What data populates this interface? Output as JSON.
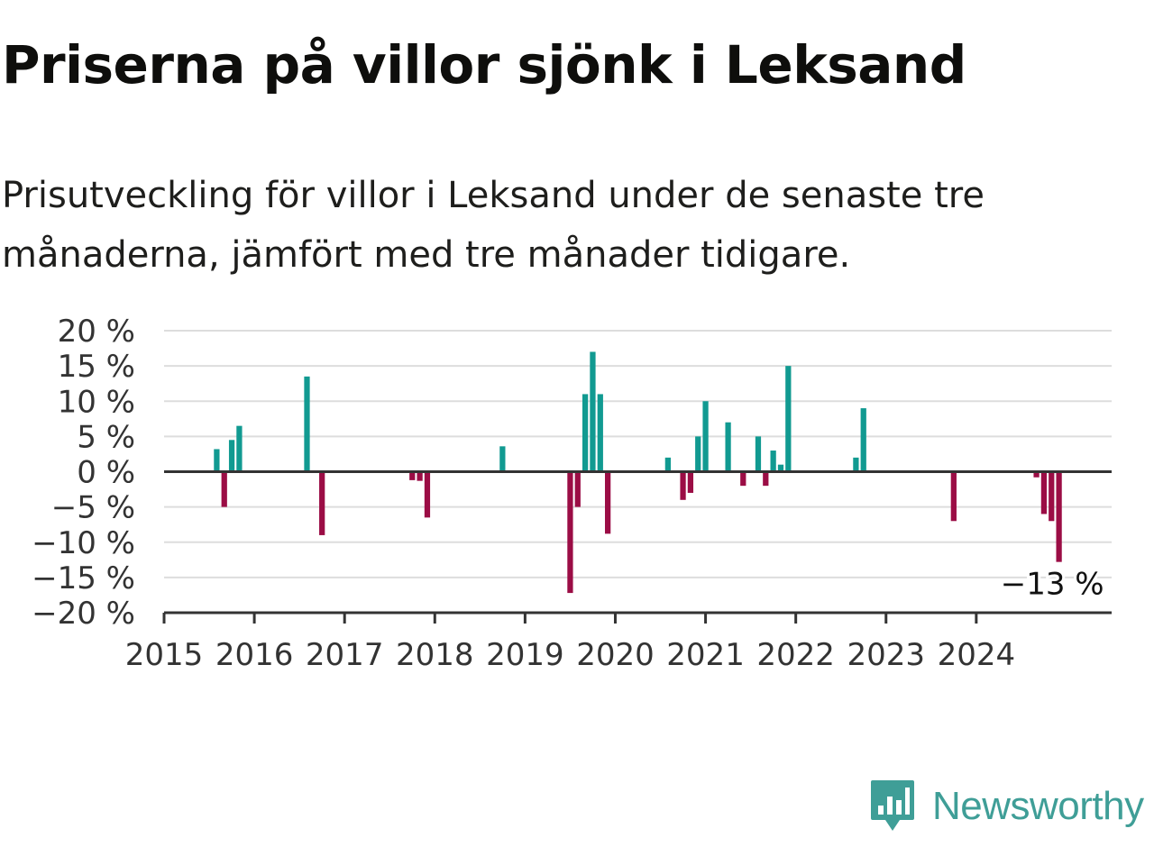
{
  "title": "Priserna på villor sjönk i Leksand",
  "subtitle": "Prisutveckling för villor i Leksand under de senaste tre månaderna, jämfört med tre månader tidigare.",
  "brand": {
    "name": "Newsworthy",
    "color": "#3f9e97",
    "icon": "chart-bubble-icon"
  },
  "chart_data": {
    "type": "bar",
    "title": "",
    "xlabel": "",
    "ylabel": "",
    "ylim": [
      -20,
      20
    ],
    "xlim": [
      2015,
      2025.5
    ],
    "grid": true,
    "legend": "none",
    "colors": {
      "positive": "#119a91",
      "negative": "#9b0d45",
      "grid": "#dddddd",
      "axis": "#333333"
    },
    "yticks": [
      {
        "value": 20,
        "label": "20 %"
      },
      {
        "value": 15,
        "label": "15 %"
      },
      {
        "value": 10,
        "label": "10 %"
      },
      {
        "value": 5,
        "label": "5 %"
      },
      {
        "value": 0,
        "label": "0 %"
      },
      {
        "value": -5,
        "label": "−5 %"
      },
      {
        "value": -10,
        "label": "−10 %"
      },
      {
        "value": -15,
        "label": "−15 %"
      },
      {
        "value": -20,
        "label": "−20 %"
      }
    ],
    "xticks": [
      {
        "value": 2015,
        "label": "2015"
      },
      {
        "value": 2016,
        "label": "2016"
      },
      {
        "value": 2017,
        "label": "2017"
      },
      {
        "value": 2018,
        "label": "2018"
      },
      {
        "value": 2019,
        "label": "2019"
      },
      {
        "value": 2020,
        "label": "2020"
      },
      {
        "value": 2021,
        "label": "2021"
      },
      {
        "value": 2022,
        "label": "2022"
      },
      {
        "value": 2023,
        "label": "2023"
      },
      {
        "value": 2024,
        "label": "2024"
      }
    ],
    "x": [
      "2015-08",
      "2015-09",
      "2015-10",
      "2015-11",
      "2016-08",
      "2016-10",
      "2017-10",
      "2017-11",
      "2017-12",
      "2018-10",
      "2019-07",
      "2019-08",
      "2019-09",
      "2019-10",
      "2019-11",
      "2019-12",
      "2020-08",
      "2020-10",
      "2020-11",
      "2020-12",
      "2021-01",
      "2021-04",
      "2021-06",
      "2021-08",
      "2021-09",
      "2021-10",
      "2021-11",
      "2021-12",
      "2022-09",
      "2022-10",
      "2023-10",
      "2024-09",
      "2024-10",
      "2024-11",
      "2024-12"
    ],
    "values": [
      3.2,
      -5,
      4.5,
      6.5,
      13.5,
      -9,
      -1.2,
      -1.3,
      -6.5,
      3.6,
      -17.2,
      -5,
      11,
      17,
      11,
      -8.8,
      2,
      -4,
      -3,
      5,
      10,
      7,
      -2,
      5,
      -2,
      3,
      1,
      15,
      2,
      9,
      -7,
      -0.8,
      -6,
      -7,
      -12.8
    ],
    "annotations": [
      {
        "x": "2024-12",
        "label": "−13 %"
      }
    ]
  }
}
